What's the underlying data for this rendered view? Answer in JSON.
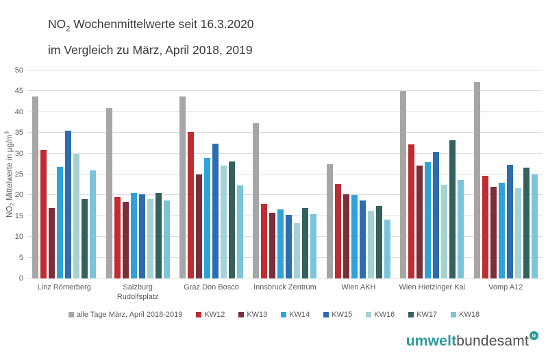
{
  "title": {
    "prefix": "NO",
    "subscript": "2",
    "line1_rest": " Wochenmittelwerte seit 16.3.2020",
    "line2": "im Vergleich zu März, April 2018, 2019"
  },
  "y_axis": {
    "prefix": "NO",
    "subscript": "2",
    "mid": " Mittelwerte in µg/m",
    "superscript": "3"
  },
  "chart_data": {
    "type": "bar",
    "title": "NO2 Wochenmittelwerte seit 16.3.2020 im Vergleich zu März, April 2018, 2019",
    "xlabel": "",
    "ylabel": "NO2 Mittelwerte in µg/m³",
    "ylim": [
      0,
      50
    ],
    "ytick_step": 5,
    "grid": true,
    "legend_position": "bottom",
    "categories": [
      "Linz Römerberg",
      "Salzburg\nRudolfsplatz",
      "Graz Don Bosco",
      "Innsbruck Zentrum",
      "Wien AKH",
      "Wien Hietzinger Kai",
      "Vomp A12"
    ],
    "series": [
      {
        "name": "alle Tage März, April 2018-2019",
        "color": "#a6a6a6",
        "values": [
          43.8,
          41.0,
          43.7,
          37.3,
          27.5,
          45.0,
          47.2
        ]
      },
      {
        "name": "KW12",
        "color": "#be2c34",
        "values": [
          31.0,
          19.5,
          35.2,
          18.0,
          22.7,
          32.3,
          24.7
        ]
      },
      {
        "name": "KW13",
        "color": "#7a2e37",
        "values": [
          17.0,
          18.5,
          25.0,
          15.8,
          20.3,
          27.2,
          22.0
        ]
      },
      {
        "name": "KW14",
        "color": "#2ea3db",
        "values": [
          26.8,
          20.5,
          29.0,
          16.6,
          20.0,
          28.0,
          23.0
        ]
      },
      {
        "name": "KW15",
        "color": "#2d6cb0",
        "values": [
          35.5,
          20.2,
          32.4,
          15.3,
          18.8,
          30.5,
          27.3
        ]
      },
      {
        "name": "KW16",
        "color": "#a5d2d4",
        "values": [
          29.9,
          19.0,
          27.2,
          13.3,
          16.3,
          22.5,
          21.7
        ]
      },
      {
        "name": "KW17",
        "color": "#34605d",
        "values": [
          19.0,
          20.5,
          28.1,
          17.0,
          17.4,
          33.3,
          26.7
        ]
      },
      {
        "name": "KW18",
        "color": "#7cc4da",
        "values": [
          26.0,
          18.8,
          22.3,
          15.4,
          14.1,
          23.7,
          25.0
        ]
      }
    ]
  },
  "logo": {
    "part1": "umwelt",
    "part2": "bundesamt",
    "badge": "u",
    "accent_color": "#2a9b98",
    "text_color": "#4d4d4d"
  }
}
